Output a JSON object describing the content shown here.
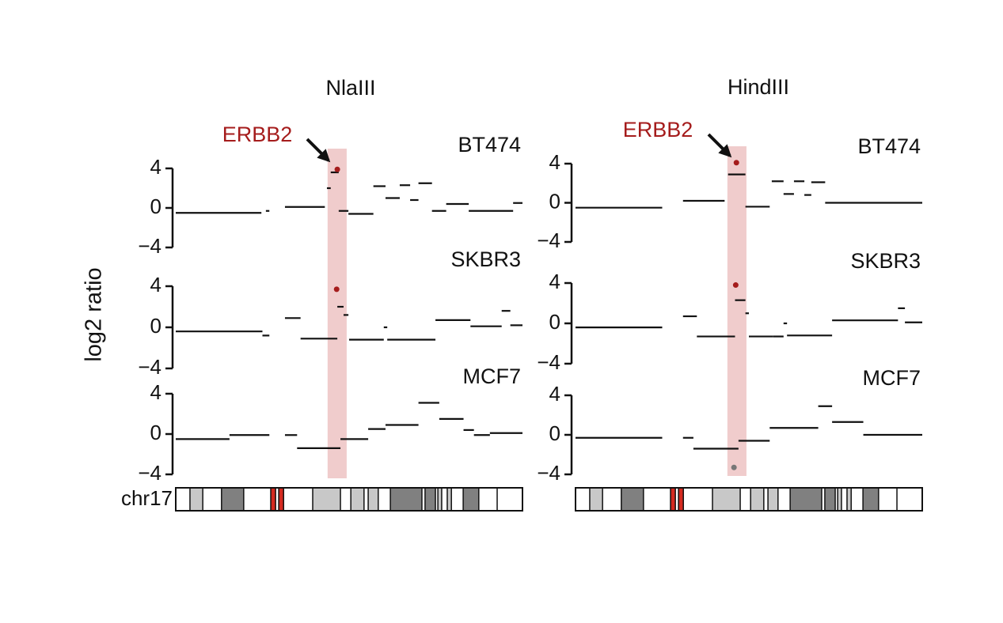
{
  "ylabel": "log2 ratio",
  "ideogram": {
    "label": "chr17",
    "bands": [
      {
        "start": 4.1,
        "end": 7.8,
        "color": "#c8c8c8"
      },
      {
        "start": 13.2,
        "end": 19.6,
        "color": "#808080"
      },
      {
        "start": 27.4,
        "end": 28.8,
        "color": "#d42a20"
      },
      {
        "start": 29.7,
        "end": 31.1,
        "color": "#d42a20"
      },
      {
        "start": 39.5,
        "end": 47.5,
        "color": "#c8c8c8"
      },
      {
        "start": 50.5,
        "end": 54.3,
        "color": "#c8c8c8"
      },
      {
        "start": 55.5,
        "end": 58.4,
        "color": "#c8c8c8"
      },
      {
        "start": 61.9,
        "end": 71,
        "color": "#808080"
      },
      {
        "start": 71.9,
        "end": 74.9,
        "color": "#808080"
      },
      {
        "start": 75.6,
        "end": 76.7,
        "color": "#c8c8c8"
      },
      {
        "start": 78.3,
        "end": 79.5,
        "color": "#c8c8c8"
      },
      {
        "start": 82.9,
        "end": 87.4,
        "color": "#808080"
      },
      {
        "start": 92.7,
        "end": 100,
        "color": "#ffffff"
      }
    ]
  },
  "chart_data": [
    {
      "type": "scatter",
      "title": "NlaIII",
      "annotation": "ERBB2",
      "annotation_color": "#a51c1c",
      "highlight": [
        43.8,
        49.3
      ],
      "highlight_color": "#f0cccc",
      "segment_color": "#111111",
      "xlim": [
        0,
        100
      ],
      "ylim": [
        -4,
        4
      ],
      "yticks": [
        {
          "value": -4,
          "label": "−4"
        },
        0,
        4
      ],
      "panels": [
        {
          "name": "BT474",
          "segments": [
            [
              0,
              24.7,
              -0.5
            ],
            [
              26,
              27,
              -0.3
            ],
            [
              31.5,
              43,
              0.1
            ],
            [
              43.6,
              44.7,
              2
            ],
            [
              44.7,
              47,
              3.6
            ],
            [
              47,
              49.8,
              -0.3
            ],
            [
              49.8,
              57,
              -0.6
            ],
            [
              57,
              60.5,
              2.2
            ],
            [
              60.5,
              64.6,
              1
            ],
            [
              64.6,
              67.6,
              2.3
            ],
            [
              67.6,
              70,
              0.8
            ],
            [
              70,
              73.9,
              2.5
            ],
            [
              73.9,
              78,
              -0.3
            ],
            [
              78,
              84.5,
              0.4
            ],
            [
              84.5,
              97.3,
              -0.3
            ],
            [
              97.3,
              100,
              0.5
            ]
          ],
          "points": [
            {
              "x": 46.6,
              "y": 3.9,
              "color": "#a51c1c"
            }
          ]
        },
        {
          "name": "SKBR3",
          "segments": [
            [
              0,
              25,
              -0.4
            ],
            [
              25,
              27,
              -0.8
            ],
            [
              31.5,
              36,
              0.9
            ],
            [
              36,
              46.6,
              -1.1
            ],
            [
              46.6,
              48.4,
              2
            ],
            [
              48.4,
              49.8,
              1.2
            ],
            [
              50,
              60,
              -1.2
            ],
            [
              60,
              61,
              0
            ],
            [
              61,
              74.9,
              -1.2
            ],
            [
              74.9,
              85,
              0.7
            ],
            [
              85,
              94,
              0.1
            ],
            [
              94,
              96.5,
              1.6
            ],
            [
              96.5,
              100,
              0.2
            ]
          ],
          "points": [
            {
              "x": 46.4,
              "y": 3.7,
              "color": "#a51c1c"
            }
          ]
        },
        {
          "name": "MCF7",
          "segments": [
            [
              0,
              15.5,
              -0.5
            ],
            [
              15.5,
              27,
              -0.1
            ],
            [
              31.5,
              35,
              -0.1
            ],
            [
              35,
              47.5,
              -1.4
            ],
            [
              47.5,
              55.5,
              -0.5
            ],
            [
              55.5,
              60.5,
              0.5
            ],
            [
              60.5,
              70,
              0.9
            ],
            [
              70,
              76,
              3.1
            ],
            [
              76,
              83,
              1.5
            ],
            [
              83,
              86,
              0.4
            ],
            [
              86,
              90.6,
              -0.1
            ],
            [
              90.6,
              100,
              0.1
            ]
          ],
          "points": []
        }
      ]
    },
    {
      "type": "scatter",
      "title": "HindIII",
      "annotation": "ERBB2",
      "annotation_color": "#a51c1c",
      "highlight": [
        43.8,
        49.3
      ],
      "highlight_color": "#f0cccc",
      "segment_color": "#111111",
      "xlim": [
        0,
        100
      ],
      "ylim": [
        -4,
        4
      ],
      "yticks": [
        {
          "value": -4,
          "label": "−4"
        },
        0,
        4
      ],
      "panels": [
        {
          "name": "BT474",
          "segments": [
            [
              0,
              25,
              -0.5
            ],
            [
              31,
              43,
              0.2
            ],
            [
              44,
              49,
              2.9
            ],
            [
              49,
              56,
              -0.4
            ],
            [
              56.6,
              60,
              2.2
            ],
            [
              60,
              63,
              0.9
            ],
            [
              63,
              66,
              2.2
            ],
            [
              66,
              68,
              0.8
            ],
            [
              68,
              72,
              2.1
            ],
            [
              72,
              100,
              0
            ]
          ],
          "points": [
            {
              "x": 46.4,
              "y": 4.1,
              "color": "#a51c1c"
            }
          ]
        },
        {
          "name": "SKBR3",
          "segments": [
            [
              0,
              25,
              -0.4
            ],
            [
              31,
              35,
              0.7
            ],
            [
              35,
              46,
              -1.3
            ],
            [
              46,
              49,
              2.3
            ],
            [
              49,
              50,
              1
            ],
            [
              50,
              57,
              -1.3
            ],
            [
              57,
              60,
              -1.3
            ],
            [
              60,
              61,
              0
            ],
            [
              61,
              74,
              -1.2
            ],
            [
              74,
              93,
              0.3
            ],
            [
              93,
              95,
              1.5
            ],
            [
              95,
              100,
              0.1
            ]
          ],
          "points": [
            {
              "x": 46.2,
              "y": 3.8,
              "color": "#a51c1c"
            }
          ]
        },
        {
          "name": "MCF7",
          "segments": [
            [
              0,
              25,
              -0.3
            ],
            [
              31,
              34,
              -0.3
            ],
            [
              34,
              47,
              -1.4
            ],
            [
              47,
              56,
              -0.6
            ],
            [
              56,
              70,
              0.7
            ],
            [
              70,
              74,
              2.9
            ],
            [
              74,
              83,
              1.3
            ],
            [
              83,
              100,
              0
            ]
          ],
          "points": [
            {
              "x": 45.7,
              "y": -3.3,
              "color": "#777777"
            }
          ]
        }
      ]
    }
  ]
}
